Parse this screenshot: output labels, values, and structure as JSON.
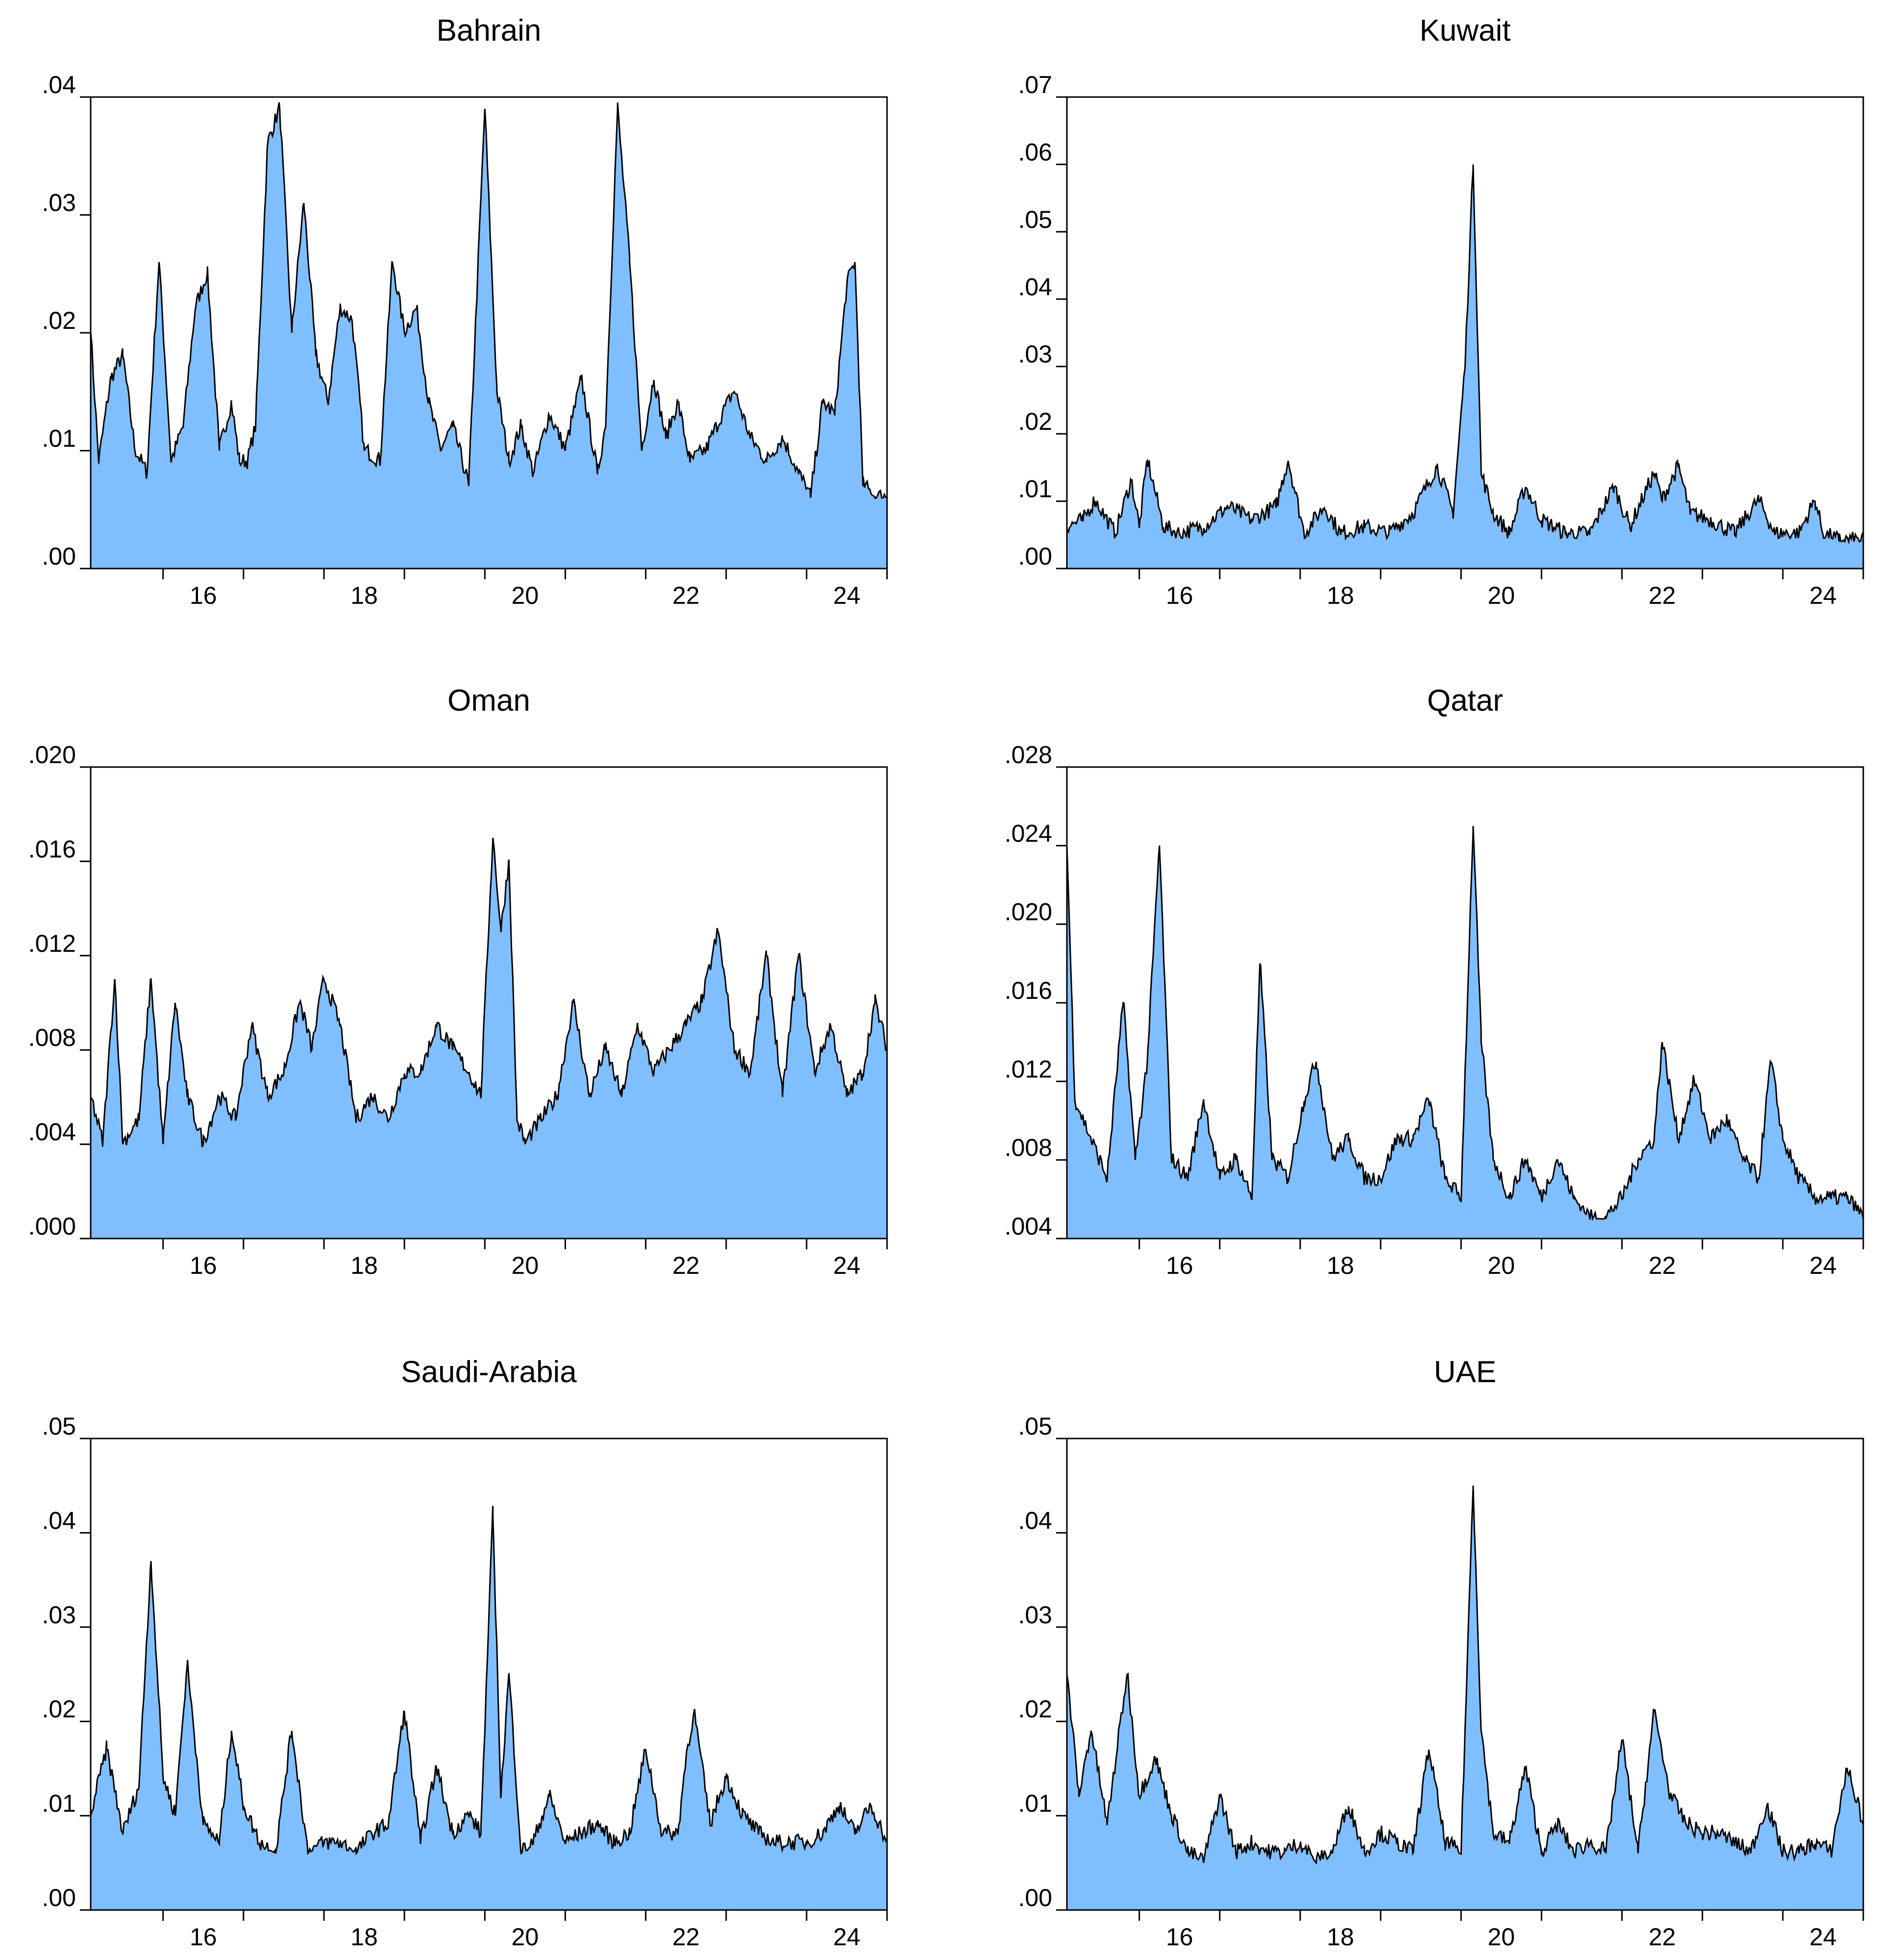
{
  "figure": {
    "background": "#ffffff",
    "area_color": "#80bfff",
    "line_color": "#000000"
  },
  "chart_data": [
    {
      "type": "area",
      "title": "Bahrain",
      "xlabel": "",
      "ylabel": "",
      "xlim": [
        14.6,
        24.5
      ],
      "xticks": [
        16,
        18,
        20,
        22,
        24
      ],
      "xtick_labels": [
        "16",
        "18",
        "20",
        "22",
        "24"
      ],
      "ylim": [
        0,
        0.04
      ],
      "yticks": [
        0,
        0.01,
        0.02,
        0.03,
        0.04
      ],
      "ytick_labels": [
        ".00",
        ".01",
        ".02",
        ".03",
        ".04"
      ],
      "baseline": 0.008,
      "x": [
        14.6,
        14.7,
        14.85,
        15.0,
        15.15,
        15.3,
        15.45,
        15.6,
        15.75,
        15.9,
        16.05,
        16.2,
        16.35,
        16.45,
        16.55,
        16.65,
        16.8,
        16.95,
        17.1,
        17.25,
        17.4,
        17.55,
        17.7,
        17.85,
        18.0,
        18.2,
        18.35,
        18.5,
        18.65,
        18.8,
        18.95,
        19.1,
        19.3,
        19.5,
        19.65,
        19.8,
        19.95,
        20.1,
        20.3,
        20.5,
        20.7,
        20.9,
        21.0,
        21.15,
        21.3,
        21.45,
        21.6,
        21.75,
        21.9,
        22.05,
        22.25,
        22.45,
        22.6,
        22.8,
        23.0,
        23.2,
        23.4,
        23.55,
        23.7,
        23.85,
        24.0,
        24.1,
        24.2,
        24.35,
        24.5
      ],
      "values": [
        0.02,
        0.009,
        0.016,
        0.018,
        0.01,
        0.008,
        0.026,
        0.009,
        0.012,
        0.022,
        0.025,
        0.01,
        0.014,
        0.009,
        0.009,
        0.012,
        0.036,
        0.039,
        0.02,
        0.031,
        0.018,
        0.014,
        0.022,
        0.021,
        0.01,
        0.009,
        0.026,
        0.02,
        0.022,
        0.014,
        0.01,
        0.012,
        0.007,
        0.039,
        0.015,
        0.009,
        0.012,
        0.008,
        0.013,
        0.01,
        0.016,
        0.008,
        0.012,
        0.039,
        0.026,
        0.01,
        0.016,
        0.011,
        0.014,
        0.009,
        0.01,
        0.013,
        0.015,
        0.011,
        0.009,
        0.011,
        0.008,
        0.006,
        0.014,
        0.013,
        0.024,
        0.026,
        0.007,
        0.006,
        0.006
      ]
    },
    {
      "type": "area",
      "title": "Kuwait",
      "xlabel": "",
      "ylabel": "",
      "xlim": [
        14.6,
        24.5
      ],
      "xticks": [
        16,
        18,
        20,
        22,
        24
      ],
      "xtick_labels": [
        "16",
        "18",
        "20",
        "22",
        "24"
      ],
      "ylim": [
        0,
        0.07
      ],
      "yticks": [
        0,
        0.01,
        0.02,
        0.03,
        0.04,
        0.05,
        0.06,
        0.07
      ],
      "ytick_labels": [
        ".00",
        ".01",
        ".02",
        ".03",
        ".04",
        ".05",
        ".06",
        ".07"
      ],
      "baseline": 0.005,
      "x": [
        14.6,
        14.8,
        14.95,
        15.2,
        15.4,
        15.5,
        15.6,
        15.8,
        16.0,
        16.3,
        16.6,
        16.9,
        17.2,
        17.35,
        17.55,
        17.8,
        18.0,
        18.3,
        18.6,
        18.9,
        19.2,
        19.4,
        19.55,
        19.65,
        19.75,
        19.9,
        20.1,
        20.3,
        20.5,
        20.8,
        21.1,
        21.4,
        21.6,
        21.9,
        22.0,
        22.2,
        22.35,
        22.6,
        22.9,
        23.2,
        23.4,
        23.7,
        23.9,
        24.0,
        24.2,
        24.5
      ],
      "values": [
        0.006,
        0.007,
        0.01,
        0.005,
        0.013,
        0.006,
        0.016,
        0.006,
        0.005,
        0.006,
        0.009,
        0.007,
        0.009,
        0.016,
        0.005,
        0.009,
        0.005,
        0.006,
        0.005,
        0.008,
        0.015,
        0.008,
        0.03,
        0.06,
        0.014,
        0.008,
        0.005,
        0.012,
        0.007,
        0.005,
        0.005,
        0.012,
        0.006,
        0.014,
        0.01,
        0.015,
        0.008,
        0.007,
        0.005,
        0.01,
        0.005,
        0.005,
        0.01,
        0.005,
        0.004,
        0.004
      ]
    },
    {
      "type": "area",
      "title": "Oman",
      "xlabel": "",
      "ylabel": "",
      "xlim": [
        14.6,
        24.5
      ],
      "xticks": [
        16,
        18,
        20,
        22,
        24
      ],
      "xtick_labels": [
        "16",
        "18",
        "20",
        "22",
        "24"
      ],
      "ylim": [
        0,
        0.02
      ],
      "yticks": [
        0,
        0.004,
        0.008,
        0.012,
        0.016,
        0.02
      ],
      "ytick_labels": [
        ".000",
        ".004",
        ".008",
        ".012",
        ".016",
        ".020"
      ],
      "baseline": 0.004,
      "x": [
        14.6,
        14.75,
        14.9,
        15.0,
        15.2,
        15.35,
        15.5,
        15.65,
        15.8,
        16.0,
        16.2,
        16.4,
        16.6,
        16.8,
        17.0,
        17.2,
        17.35,
        17.5,
        17.7,
        17.9,
        18.1,
        18.3,
        18.5,
        18.7,
        18.9,
        19.1,
        19.3,
        19.45,
        19.6,
        19.7,
        19.8,
        19.9,
        20.0,
        20.2,
        20.4,
        20.6,
        20.8,
        21.0,
        21.2,
        21.4,
        21.6,
        21.8,
        22.0,
        22.2,
        22.4,
        22.6,
        22.8,
        23.0,
        23.2,
        23.4,
        23.6,
        23.8,
        24.0,
        24.2,
        24.35,
        24.5
      ],
      "values": [
        0.006,
        0.004,
        0.011,
        0.004,
        0.005,
        0.011,
        0.004,
        0.01,
        0.006,
        0.004,
        0.006,
        0.005,
        0.009,
        0.006,
        0.007,
        0.01,
        0.008,
        0.011,
        0.009,
        0.005,
        0.006,
        0.005,
        0.007,
        0.007,
        0.009,
        0.008,
        0.007,
        0.006,
        0.017,
        0.013,
        0.016,
        0.005,
        0.004,
        0.005,
        0.006,
        0.01,
        0.006,
        0.008,
        0.006,
        0.009,
        0.007,
        0.008,
        0.009,
        0.01,
        0.013,
        0.008,
        0.007,
        0.012,
        0.006,
        0.012,
        0.007,
        0.009,
        0.006,
        0.007,
        0.01,
        0.008
      ]
    },
    {
      "type": "area",
      "title": "Qatar",
      "xlabel": "",
      "ylabel": "",
      "xlim": [
        14.6,
        24.5
      ],
      "xticks": [
        16,
        18,
        20,
        22,
        24
      ],
      "xtick_labels": [
        "16",
        "18",
        "20",
        "22",
        "24"
      ],
      "ylim": [
        0.004,
        0.028
      ],
      "yticks": [
        0.004,
        0.008,
        0.012,
        0.016,
        0.02,
        0.024,
        0.028
      ],
      "ytick_labels": [
        ".004",
        ".008",
        ".012",
        ".016",
        ".020",
        ".024",
        ".028"
      ],
      "baseline": 0.006,
      "x": [
        14.6,
        14.7,
        14.9,
        15.1,
        15.3,
        15.45,
        15.6,
        15.75,
        15.9,
        16.1,
        16.3,
        16.5,
        16.7,
        16.9,
        17.0,
        17.15,
        17.35,
        17.55,
        17.7,
        17.9,
        18.1,
        18.3,
        18.5,
        18.7,
        18.9,
        19.1,
        19.3,
        19.5,
        19.65,
        19.75,
        19.9,
        20.1,
        20.3,
        20.5,
        20.7,
        20.9,
        21.1,
        21.3,
        21.5,
        21.7,
        21.9,
        22.0,
        22.2,
        22.4,
        22.6,
        22.8,
        23.0,
        23.2,
        23.35,
        23.5,
        23.7,
        23.9,
        24.1,
        24.3,
        24.5
      ],
      "values": [
        0.024,
        0.011,
        0.009,
        0.007,
        0.016,
        0.008,
        0.013,
        0.024,
        0.008,
        0.007,
        0.011,
        0.007,
        0.008,
        0.006,
        0.018,
        0.008,
        0.007,
        0.011,
        0.013,
        0.008,
        0.009,
        0.007,
        0.007,
        0.009,
        0.009,
        0.011,
        0.007,
        0.006,
        0.025,
        0.014,
        0.008,
        0.006,
        0.008,
        0.006,
        0.008,
        0.006,
        0.005,
        0.005,
        0.006,
        0.008,
        0.009,
        0.014,
        0.009,
        0.012,
        0.009,
        0.01,
        0.008,
        0.007,
        0.013,
        0.009,
        0.007,
        0.006,
        0.006,
        0.006,
        0.005
      ]
    },
    {
      "type": "area",
      "title": "Saudi-Arabia",
      "xlabel": "",
      "ylabel": "",
      "xlim": [
        14.6,
        24.5
      ],
      "xticks": [
        16,
        18,
        20,
        22,
        24
      ],
      "xtick_labels": [
        "16",
        "18",
        "20",
        "22",
        "24"
      ],
      "ylim": [
        0,
        0.05
      ],
      "yticks": [
        0,
        0.01,
        0.02,
        0.03,
        0.04,
        0.05
      ],
      "ytick_labels": [
        ".00",
        ".01",
        ".02",
        ".03",
        ".04",
        ".05"
      ],
      "baseline": 0.007,
      "x": [
        14.6,
        14.8,
        15.0,
        15.2,
        15.35,
        15.5,
        15.65,
        15.8,
        16.0,
        16.2,
        16.35,
        16.5,
        16.7,
        16.9,
        17.1,
        17.3,
        17.5,
        17.7,
        17.9,
        18.1,
        18.3,
        18.5,
        18.7,
        18.9,
        19.1,
        19.3,
        19.45,
        19.6,
        19.7,
        19.8,
        19.95,
        20.1,
        20.3,
        20.5,
        20.7,
        20.9,
        21.1,
        21.3,
        21.5,
        21.7,
        21.9,
        22.0,
        22.1,
        22.3,
        22.5,
        22.7,
        22.9,
        23.1,
        23.3,
        23.5,
        23.7,
        23.9,
        24.1,
        24.3,
        24.5
      ],
      "values": [
        0.01,
        0.017,
        0.008,
        0.013,
        0.037,
        0.014,
        0.01,
        0.026,
        0.009,
        0.007,
        0.019,
        0.011,
        0.007,
        0.006,
        0.019,
        0.006,
        0.007,
        0.007,
        0.006,
        0.008,
        0.009,
        0.021,
        0.007,
        0.015,
        0.008,
        0.01,
        0.008,
        0.042,
        0.012,
        0.025,
        0.006,
        0.007,
        0.012,
        0.007,
        0.008,
        0.009,
        0.007,
        0.008,
        0.017,
        0.008,
        0.008,
        0.016,
        0.021,
        0.009,
        0.014,
        0.01,
        0.008,
        0.007,
        0.007,
        0.007,
        0.008,
        0.011,
        0.008,
        0.011,
        0.007
      ]
    },
    {
      "type": "area",
      "title": "UAE",
      "xlabel": "",
      "ylabel": "",
      "xlim": [
        14.6,
        24.5
      ],
      "xticks": [
        16,
        18,
        20,
        22,
        24
      ],
      "xtick_labels": [
        "16",
        "18",
        "20",
        "22",
        "24"
      ],
      "ylim": [
        0,
        0.05
      ],
      "yticks": [
        0,
        0.01,
        0.02,
        0.03,
        0.04,
        0.05
      ],
      "ytick_labels": [
        ".00",
        ".01",
        ".02",
        ".03",
        ".04",
        ".05"
      ],
      "baseline": 0.006,
      "x": [
        14.6,
        14.75,
        14.9,
        15.1,
        15.35,
        15.5,
        15.7,
        15.9,
        16.1,
        16.3,
        16.5,
        16.7,
        16.9,
        17.1,
        17.3,
        17.5,
        17.7,
        17.9,
        18.1,
        18.3,
        18.5,
        18.7,
        18.9,
        19.1,
        19.3,
        19.5,
        19.65,
        19.75,
        19.9,
        20.1,
        20.3,
        20.5,
        20.7,
        20.9,
        21.1,
        21.3,
        21.5,
        21.7,
        21.9,
        22.1,
        22.3,
        22.5,
        22.7,
        22.9,
        23.1,
        23.3,
        23.5,
        23.7,
        23.9,
        24.1,
        24.3,
        24.5
      ],
      "values": [
        0.025,
        0.012,
        0.019,
        0.009,
        0.025,
        0.012,
        0.016,
        0.01,
        0.006,
        0.005,
        0.012,
        0.006,
        0.007,
        0.006,
        0.006,
        0.007,
        0.005,
        0.006,
        0.011,
        0.006,
        0.008,
        0.007,
        0.006,
        0.017,
        0.007,
        0.006,
        0.045,
        0.019,
        0.008,
        0.007,
        0.015,
        0.006,
        0.009,
        0.006,
        0.007,
        0.006,
        0.018,
        0.006,
        0.021,
        0.012,
        0.009,
        0.008,
        0.008,
        0.007,
        0.006,
        0.011,
        0.006,
        0.006,
        0.007,
        0.006,
        0.015,
        0.009
      ]
    }
  ]
}
